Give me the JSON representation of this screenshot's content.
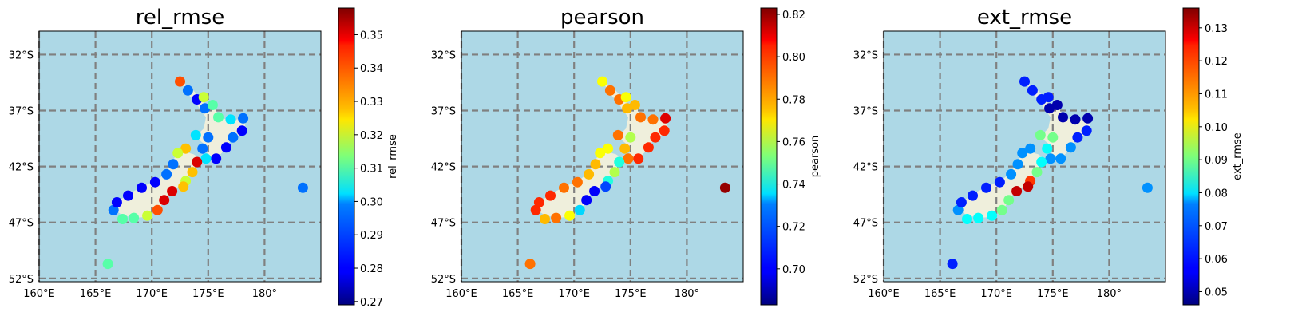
{
  "chart_data": [
    {
      "type": "scatter",
      "title": "rel_rmse",
      "colorbar_label": "rel_rmse",
      "colormap": "jet",
      "clim": [
        0.269,
        0.358
      ],
      "colorbar_ticks": [
        "0.27",
        "0.28",
        "0.29",
        "0.30",
        "0.31",
        "0.32",
        "0.33",
        "0.34",
        "0.35"
      ],
      "colorbar_tick_values": [
        0.27,
        0.28,
        0.29,
        0.3,
        0.31,
        0.32,
        0.33,
        0.34,
        0.35
      ],
      "stations": [
        {
          "lon": 172.5,
          "lat": -34.4,
          "value": 0.34
        },
        {
          "lon": 173.2,
          "lat": -35.2,
          "value": 0.29
        },
        {
          "lon": 174.0,
          "lat": -36.0,
          "value": 0.28
        },
        {
          "lon": 174.7,
          "lat": -36.8,
          "value": 0.29
        },
        {
          "lon": 174.6,
          "lat": -35.8,
          "value": 0.32
        },
        {
          "lon": 175.4,
          "lat": -36.5,
          "value": 0.31
        },
        {
          "lon": 175.9,
          "lat": -37.6,
          "value": 0.31
        },
        {
          "lon": 177.0,
          "lat": -37.8,
          "value": 0.3
        },
        {
          "lon": 178.1,
          "lat": -37.7,
          "value": 0.29
        },
        {
          "lon": 178.0,
          "lat": -38.8,
          "value": 0.28
        },
        {
          "lon": 177.2,
          "lat": -39.4,
          "value": 0.29
        },
        {
          "lon": 176.6,
          "lat": -40.3,
          "value": 0.28
        },
        {
          "lon": 175.7,
          "lat": -41.3,
          "value": 0.28
        },
        {
          "lon": 174.8,
          "lat": -41.3,
          "value": 0.3
        },
        {
          "lon": 174.5,
          "lat": -40.4,
          "value": 0.29
        },
        {
          "lon": 173.9,
          "lat": -39.2,
          "value": 0.3
        },
        {
          "lon": 175.0,
          "lat": -39.4,
          "value": 0.29
        },
        {
          "lon": 173.0,
          "lat": -40.4,
          "value": 0.33
        },
        {
          "lon": 174.0,
          "lat": -41.6,
          "value": 0.35
        },
        {
          "lon": 173.6,
          "lat": -42.5,
          "value": 0.33
        },
        {
          "lon": 173.0,
          "lat": -43.3,
          "value": 0.32
        },
        {
          "lon": 172.8,
          "lat": -43.8,
          "value": 0.33
        },
        {
          "lon": 171.8,
          "lat": -44.2,
          "value": 0.35
        },
        {
          "lon": 171.1,
          "lat": -45.0,
          "value": 0.35
        },
        {
          "lon": 170.5,
          "lat": -45.9,
          "value": 0.34
        },
        {
          "lon": 169.6,
          "lat": -46.4,
          "value": 0.32
        },
        {
          "lon": 168.4,
          "lat": -46.6,
          "value": 0.31
        },
        {
          "lon": 167.4,
          "lat": -46.7,
          "value": 0.31
        },
        {
          "lon": 166.6,
          "lat": -45.9,
          "value": 0.29
        },
        {
          "lon": 166.9,
          "lat": -45.2,
          "value": 0.28
        },
        {
          "lon": 167.9,
          "lat": -44.6,
          "value": 0.28
        },
        {
          "lon": 169.1,
          "lat": -43.9,
          "value": 0.28
        },
        {
          "lon": 170.3,
          "lat": -43.4,
          "value": 0.28
        },
        {
          "lon": 171.3,
          "lat": -42.7,
          "value": 0.29
        },
        {
          "lon": 171.9,
          "lat": -41.8,
          "value": 0.29
        },
        {
          "lon": 172.3,
          "lat": -40.8,
          "value": 0.32
        },
        {
          "lon": 183.4,
          "lat": -43.9,
          "value": 0.29
        },
        {
          "lon": 166.1,
          "lat": -50.7,
          "value": 0.31
        }
      ]
    },
    {
      "type": "scatter",
      "title": "pearson",
      "colorbar_label": "pearson",
      "colormap": "jet",
      "clim": [
        0.683,
        0.823
      ],
      "colorbar_ticks": [
        "0.70",
        "0.72",
        "0.74",
        "0.76",
        "0.78",
        "0.80",
        "0.82"
      ],
      "colorbar_tick_values": [
        0.7,
        0.72,
        0.74,
        0.76,
        0.78,
        0.8,
        0.82
      ],
      "stations": [
        {
          "lon": 172.5,
          "lat": -34.4,
          "value": 0.77
        },
        {
          "lon": 173.2,
          "lat": -35.2,
          "value": 0.79
        },
        {
          "lon": 174.0,
          "lat": -36.0,
          "value": 0.79
        },
        {
          "lon": 174.7,
          "lat": -36.8,
          "value": 0.78
        },
        {
          "lon": 174.6,
          "lat": -35.8,
          "value": 0.77
        },
        {
          "lon": 175.4,
          "lat": -36.5,
          "value": 0.78
        },
        {
          "lon": 175.9,
          "lat": -37.6,
          "value": 0.79
        },
        {
          "lon": 177.0,
          "lat": -37.8,
          "value": 0.79
        },
        {
          "lon": 178.1,
          "lat": -37.7,
          "value": 0.81
        },
        {
          "lon": 178.0,
          "lat": -38.8,
          "value": 0.8
        },
        {
          "lon": 177.2,
          "lat": -39.4,
          "value": 0.8
        },
        {
          "lon": 176.6,
          "lat": -40.3,
          "value": 0.8
        },
        {
          "lon": 175.7,
          "lat": -41.3,
          "value": 0.8
        },
        {
          "lon": 174.8,
          "lat": -41.3,
          "value": 0.79
        },
        {
          "lon": 174.5,
          "lat": -40.4,
          "value": 0.78
        },
        {
          "lon": 173.9,
          "lat": -39.2,
          "value": 0.79
        },
        {
          "lon": 175.0,
          "lat": -39.4,
          "value": 0.76
        },
        {
          "lon": 173.0,
          "lat": -40.4,
          "value": 0.77
        },
        {
          "lon": 174.0,
          "lat": -41.6,
          "value": 0.74
        },
        {
          "lon": 173.6,
          "lat": -42.5,
          "value": 0.76
        },
        {
          "lon": 173.0,
          "lat": -43.3,
          "value": 0.74
        },
        {
          "lon": 172.8,
          "lat": -43.8,
          "value": 0.71
        },
        {
          "lon": 171.8,
          "lat": -44.2,
          "value": 0.7
        },
        {
          "lon": 171.1,
          "lat": -45.0,
          "value": 0.7
        },
        {
          "lon": 170.5,
          "lat": -45.9,
          "value": 0.73
        },
        {
          "lon": 169.6,
          "lat": -46.4,
          "value": 0.77
        },
        {
          "lon": 168.4,
          "lat": -46.6,
          "value": 0.79
        },
        {
          "lon": 167.4,
          "lat": -46.7,
          "value": 0.78
        },
        {
          "lon": 166.6,
          "lat": -45.9,
          "value": 0.8
        },
        {
          "lon": 166.9,
          "lat": -45.2,
          "value": 0.8
        },
        {
          "lon": 167.9,
          "lat": -44.6,
          "value": 0.8
        },
        {
          "lon": 169.1,
          "lat": -43.9,
          "value": 0.79
        },
        {
          "lon": 170.3,
          "lat": -43.4,
          "value": 0.79
        },
        {
          "lon": 171.3,
          "lat": -42.7,
          "value": 0.78
        },
        {
          "lon": 171.9,
          "lat": -41.8,
          "value": 0.78
        },
        {
          "lon": 172.3,
          "lat": -40.8,
          "value": 0.77
        },
        {
          "lon": 183.4,
          "lat": -43.9,
          "value": 0.82
        },
        {
          "lon": 166.1,
          "lat": -50.7,
          "value": 0.79
        }
      ]
    },
    {
      "type": "scatter",
      "title": "ext_rmse",
      "colorbar_label": "ext_rmse",
      "colormap": "jet",
      "clim": [
        0.046,
        0.136
      ],
      "colorbar_ticks": [
        "0.05",
        "0.06",
        "0.07",
        "0.08",
        "0.09",
        "0.10",
        "0.11",
        "0.12",
        "0.13"
      ],
      "colorbar_tick_values": [
        0.05,
        0.06,
        0.07,
        0.08,
        0.09,
        0.1,
        0.11,
        0.12,
        0.13
      ],
      "stations": [
        {
          "lon": 172.5,
          "lat": -34.4,
          "value": 0.06
        },
        {
          "lon": 173.2,
          "lat": -35.2,
          "value": 0.06
        },
        {
          "lon": 174.0,
          "lat": -36.0,
          "value": 0.06
        },
        {
          "lon": 174.7,
          "lat": -36.8,
          "value": 0.05
        },
        {
          "lon": 174.6,
          "lat": -35.8,
          "value": 0.06
        },
        {
          "lon": 175.4,
          "lat": -36.5,
          "value": 0.05
        },
        {
          "lon": 175.9,
          "lat": -37.6,
          "value": 0.05
        },
        {
          "lon": 177.0,
          "lat": -37.8,
          "value": 0.05
        },
        {
          "lon": 178.1,
          "lat": -37.7,
          "value": 0.05
        },
        {
          "lon": 178.0,
          "lat": -38.8,
          "value": 0.06
        },
        {
          "lon": 177.2,
          "lat": -39.4,
          "value": 0.06
        },
        {
          "lon": 176.6,
          "lat": -40.3,
          "value": 0.07
        },
        {
          "lon": 175.7,
          "lat": -41.3,
          "value": 0.07
        },
        {
          "lon": 174.8,
          "lat": -41.3,
          "value": 0.07
        },
        {
          "lon": 174.5,
          "lat": -40.4,
          "value": 0.08
        },
        {
          "lon": 173.9,
          "lat": -39.2,
          "value": 0.09
        },
        {
          "lon": 175.0,
          "lat": -39.4,
          "value": 0.09
        },
        {
          "lon": 173.0,
          "lat": -40.4,
          "value": 0.07
        },
        {
          "lon": 174.0,
          "lat": -41.6,
          "value": 0.08
        },
        {
          "lon": 173.6,
          "lat": -42.5,
          "value": 0.09
        },
        {
          "lon": 173.0,
          "lat": -43.3,
          "value": 0.12
        },
        {
          "lon": 172.8,
          "lat": -43.8,
          "value": 0.13
        },
        {
          "lon": 171.8,
          "lat": -44.2,
          "value": 0.13
        },
        {
          "lon": 171.1,
          "lat": -45.0,
          "value": 0.09
        },
        {
          "lon": 170.5,
          "lat": -45.9,
          "value": 0.09
        },
        {
          "lon": 169.6,
          "lat": -46.4,
          "value": 0.08
        },
        {
          "lon": 168.4,
          "lat": -46.6,
          "value": 0.08
        },
        {
          "lon": 167.4,
          "lat": -46.7,
          "value": 0.08
        },
        {
          "lon": 166.6,
          "lat": -45.9,
          "value": 0.07
        },
        {
          "lon": 166.9,
          "lat": -45.2,
          "value": 0.06
        },
        {
          "lon": 167.9,
          "lat": -44.6,
          "value": 0.06
        },
        {
          "lon": 169.1,
          "lat": -43.9,
          "value": 0.06
        },
        {
          "lon": 170.3,
          "lat": -43.4,
          "value": 0.06
        },
        {
          "lon": 171.3,
          "lat": -42.7,
          "value": 0.07
        },
        {
          "lon": 171.9,
          "lat": -41.8,
          "value": 0.07
        },
        {
          "lon": 172.3,
          "lat": -40.8,
          "value": 0.07
        },
        {
          "lon": 183.4,
          "lat": -43.9,
          "value": 0.07
        },
        {
          "lon": 166.1,
          "lat": -50.7,
          "value": 0.06
        }
      ]
    }
  ],
  "map": {
    "lon_range": [
      160,
      185
    ],
    "lat_range": [
      -52.3,
      -29.9
    ],
    "x_ticks": [
      "160°E",
      "165°E",
      "170°E",
      "175°E",
      "180°"
    ],
    "x_tick_values": [
      160,
      165,
      170,
      175,
      180
    ],
    "y_ticks": [
      "32°S",
      "37°S",
      "42°S",
      "47°S",
      "52°S"
    ],
    "y_tick_values": [
      -32,
      -37,
      -42,
      -47,
      -52
    ],
    "ocean_color": "#add8e6",
    "land_color": "#efefdc",
    "gridline_color": "#808080",
    "gridline_style": "dashed",
    "north_island": [
      [
        172.6,
        -34.4
      ],
      [
        173.5,
        -35.0
      ],
      [
        174.4,
        -36.0
      ],
      [
        174.9,
        -36.6
      ],
      [
        175.6,
        -36.9
      ],
      [
        176.2,
        -37.7
      ],
      [
        177.2,
        -37.9
      ],
      [
        178.2,
        -37.6
      ],
      [
        178.3,
        -38.5
      ],
      [
        177.8,
        -39.2
      ],
      [
        177.0,
        -39.6
      ],
      [
        176.7,
        -40.3
      ],
      [
        176.0,
        -41.0
      ],
      [
        175.3,
        -41.5
      ],
      [
        174.8,
        -41.3
      ],
      [
        175.0,
        -40.3
      ],
      [
        174.3,
        -39.7
      ],
      [
        173.9,
        -39.3
      ],
      [
        174.6,
        -38.6
      ],
      [
        174.8,
        -37.6
      ],
      [
        174.3,
        -36.9
      ],
      [
        173.9,
        -36.3
      ],
      [
        173.0,
        -35.3
      ]
    ],
    "south_island": [
      [
        172.6,
        -40.6
      ],
      [
        173.7,
        -40.9
      ],
      [
        174.3,
        -41.3
      ],
      [
        174.0,
        -42.1
      ],
      [
        173.3,
        -42.9
      ],
      [
        172.7,
        -43.6
      ],
      [
        171.6,
        -44.3
      ],
      [
        171.1,
        -45.0
      ],
      [
        170.6,
        -45.9
      ],
      [
        169.6,
        -46.5
      ],
      [
        168.4,
        -46.6
      ],
      [
        167.3,
        -46.3
      ],
      [
        166.6,
        -45.8
      ],
      [
        167.0,
        -45.1
      ],
      [
        168.2,
        -44.3
      ],
      [
        169.2,
        -43.8
      ],
      [
        170.5,
        -43.2
      ],
      [
        171.3,
        -42.5
      ],
      [
        171.8,
        -41.6
      ],
      [
        172.2,
        -40.9
      ]
    ]
  }
}
